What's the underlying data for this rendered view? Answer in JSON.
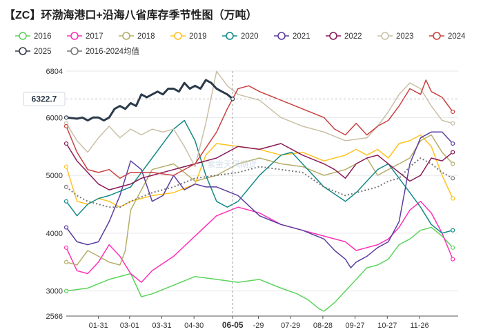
{
  "title": "【ZC】环渤海港口+沿海八省库存季节性图（万吨）",
  "cursor_value": "6322.7",
  "cursor_date": "06-05",
  "watermark": "紫金天风期货",
  "chart_data": {
    "type": "line",
    "title": "【ZC】环渤海港口+沿海八省库存季节性图（万吨）",
    "xlabel": "",
    "ylabel": "",
    "ylim": [
      2566,
      6804
    ],
    "y_ticks": [
      2566,
      3000,
      4000,
      5000,
      6000,
      6804
    ],
    "x_tick_labels": [
      "01-31",
      "03-01",
      "03-31",
      "04-30",
      "06-05",
      "-29",
      "07-29",
      "08-28",
      "09-27",
      "10-27",
      "11-26"
    ],
    "x_tick_days": [
      30,
      59,
      89,
      119,
      155,
      179,
      209,
      239,
      269,
      299,
      329
    ],
    "xlim_days": [
      0,
      365
    ],
    "grid": true,
    "legend_position": "top",
    "series": [
      {
        "name": "2016",
        "color": "#5bd45b",
        "dashed": false,
        "x": [
          0,
          20,
          40,
          60,
          70,
          80,
          100,
          120,
          140,
          160,
          180,
          200,
          215,
          225,
          235,
          240,
          250,
          260,
          270,
          280,
          290,
          300,
          310,
          320,
          330,
          340,
          350,
          360
        ],
        "y": [
          3000,
          3050,
          3200,
          3300,
          2900,
          2950,
          3100,
          3250,
          3200,
          3150,
          3200,
          3050,
          2950,
          2850,
          2700,
          2650,
          2800,
          3000,
          3200,
          3400,
          3450,
          3550,
          3800,
          3900,
          4050,
          4100,
          3950,
          3750
        ]
      },
      {
        "name": "2017",
        "color": "#ff2fb8",
        "dashed": false,
        "x": [
          0,
          10,
          20,
          30,
          40,
          50,
          60,
          70,
          80,
          100,
          120,
          140,
          160,
          180,
          200,
          220,
          240,
          260,
          270,
          280,
          290,
          300,
          310,
          320,
          330,
          340,
          350,
          360
        ],
        "y": [
          3750,
          3350,
          3300,
          3500,
          3800,
          3600,
          3300,
          3150,
          3350,
          3600,
          3950,
          4300,
          4450,
          4350,
          4150,
          4050,
          3950,
          3850,
          3700,
          3750,
          3800,
          3900,
          4100,
          4400,
          4550,
          4350,
          4000,
          3550
        ]
      },
      {
        "name": "2018",
        "color": "#b5ad6a",
        "dashed": false,
        "x": [
          0,
          10,
          20,
          30,
          40,
          50,
          55,
          60,
          80,
          100,
          120,
          140,
          160,
          180,
          200,
          220,
          240,
          260,
          270,
          280,
          290,
          300,
          310,
          320,
          330,
          340,
          350,
          360
        ],
        "y": [
          3500,
          3450,
          3700,
          3600,
          3500,
          3450,
          3700,
          4400,
          5100,
          5200,
          4900,
          5000,
          5200,
          5300,
          5200,
          5150,
          5000,
          5100,
          5200,
          5300,
          5000,
          5100,
          5200,
          5300,
          5600,
          5700,
          5400,
          5200
        ]
      },
      {
        "name": "2019",
        "color": "#ffc21c",
        "dashed": false,
        "x": [
          0,
          10,
          20,
          30,
          40,
          50,
          60,
          80,
          100,
          120,
          130,
          140,
          160,
          180,
          200,
          220,
          240,
          260,
          270,
          280,
          290,
          300,
          310,
          320,
          330,
          340,
          350,
          360
        ],
        "y": [
          5150,
          4550,
          4500,
          4600,
          4550,
          4450,
          4550,
          4650,
          4700,
          4850,
          5350,
          5550,
          5500,
          5450,
          5350,
          5400,
          5250,
          5350,
          5450,
          5350,
          5450,
          5300,
          5550,
          5600,
          5700,
          5500,
          5000,
          4600
        ]
      },
      {
        "name": "2020",
        "color": "#138a86",
        "dashed": false,
        "x": [
          0,
          10,
          20,
          30,
          40,
          60,
          80,
          100,
          110,
          120,
          130,
          140,
          150,
          160,
          180,
          200,
          210,
          220,
          240,
          260,
          270,
          280,
          290,
          300,
          310,
          320,
          330,
          340,
          350,
          360
        ],
        "y": [
          4550,
          4300,
          4500,
          4600,
          4650,
          4800,
          5300,
          5800,
          5950,
          5600,
          5000,
          4550,
          4450,
          4550,
          5000,
          5350,
          5400,
          5200,
          4800,
          4550,
          4700,
          4900,
          5100,
          5200,
          4950,
          4700,
          4450,
          4150,
          4000,
          4050
        ]
      },
      {
        "name": "2021",
        "color": "#5b3d9e",
        "dashed": false,
        "x": [
          0,
          10,
          20,
          30,
          40,
          50,
          60,
          70,
          80,
          90,
          100,
          110,
          120,
          130,
          140,
          160,
          180,
          200,
          220,
          240,
          250,
          260,
          265,
          270,
          280,
          290,
          300,
          310,
          320,
          330,
          340,
          350,
          360
        ],
        "y": [
          4100,
          3850,
          3800,
          3850,
          4200,
          4650,
          5250,
          5100,
          4550,
          4650,
          5000,
          4750,
          4850,
          4800,
          4800,
          4650,
          4300,
          4150,
          4050,
          3900,
          3700,
          3550,
          3400,
          3500,
          3600,
          3750,
          3850,
          4200,
          5200,
          5650,
          5750,
          5750,
          5550
        ]
      },
      {
        "name": "2022",
        "color": "#8a1a58",
        "dashed": false,
        "x": [
          0,
          10,
          20,
          30,
          40,
          50,
          60,
          70,
          80,
          100,
          120,
          140,
          160,
          180,
          200,
          220,
          240,
          250,
          260,
          270,
          280,
          290,
          300,
          310,
          320,
          330,
          340,
          350,
          360
        ],
        "y": [
          5550,
          5250,
          5050,
          4850,
          4750,
          4800,
          4850,
          4950,
          5000,
          5100,
          5200,
          5300,
          5500,
          5450,
          5550,
          5350,
          5200,
          5100,
          4950,
          5200,
          5300,
          5350,
          5200,
          5050,
          4900,
          5000,
          5300,
          5250,
          5400
        ]
      },
      {
        "name": "2023",
        "color": "#c9bfa6",
        "dashed": false,
        "x": [
          0,
          10,
          20,
          30,
          40,
          50,
          60,
          70,
          80,
          90,
          100,
          110,
          120,
          130,
          140,
          150,
          160,
          180,
          200,
          220,
          240,
          260,
          280,
          290,
          300,
          310,
          320,
          330,
          340,
          350,
          360
        ],
        "y": [
          5900,
          5600,
          5400,
          5650,
          5850,
          5650,
          5800,
          5700,
          5800,
          5750,
          5800,
          5500,
          5150,
          5900,
          6800,
          6550,
          6400,
          6300,
          6000,
          5850,
          5750,
          5600,
          5650,
          5850,
          6100,
          6400,
          6600,
          6500,
          6200,
          5950,
          5900
        ]
      },
      {
        "name": "2024",
        "color": "#c94040",
        "dashed": false,
        "x": [
          0,
          10,
          20,
          30,
          40,
          50,
          60,
          80,
          100,
          120,
          140,
          150,
          160,
          170,
          180,
          200,
          220,
          240,
          250,
          260,
          270,
          280,
          290,
          300,
          310,
          320,
          330,
          335,
          340,
          345,
          350,
          360
        ],
        "y": [
          5850,
          5400,
          5100,
          5050,
          5100,
          4950,
          5050,
          5050,
          5000,
          5200,
          5750,
          6150,
          6500,
          6550,
          6450,
          6300,
          6150,
          6000,
          5800,
          5700,
          5900,
          5700,
          5850,
          5950,
          6200,
          6500,
          6400,
          6650,
          6450,
          6400,
          6350,
          6100
        ]
      },
      {
        "name": "2025",
        "color": "#2b3a4a",
        "dashed": false,
        "x": [
          0,
          10,
          15,
          20,
          25,
          30,
          35,
          40,
          45,
          50,
          55,
          60,
          65,
          70,
          75,
          80,
          85,
          90,
          95,
          100,
          105,
          110,
          115,
          120,
          125,
          130,
          135,
          140,
          145,
          150,
          155
        ],
        "y": [
          6000,
          5980,
          6000,
          5950,
          6000,
          6000,
          5950,
          6000,
          6150,
          6200,
          6150,
          6250,
          6200,
          6400,
          6350,
          6400,
          6450,
          6400,
          6500,
          6500,
          6450,
          6600,
          6500,
          6550,
          6500,
          6650,
          6600,
          6500,
          6450,
          6400,
          6322.7
        ]
      },
      {
        "name": "2016-2024均值",
        "color": "#777777",
        "dashed": true,
        "x": [
          0,
          10,
          20,
          30,
          40,
          50,
          60,
          80,
          100,
          120,
          140,
          160,
          180,
          200,
          220,
          240,
          260,
          270,
          280,
          290,
          300,
          310,
          320,
          330,
          340,
          350,
          360
        ],
        "y": [
          4800,
          4650,
          4550,
          4500,
          4450,
          4450,
          4550,
          4700,
          4800,
          4950,
          5000,
          5050,
          5150,
          5100,
          5050,
          4800,
          4650,
          4700,
          4750,
          4800,
          4900,
          4950,
          5150,
          5300,
          5200,
          5050,
          4950
        ]
      }
    ]
  }
}
